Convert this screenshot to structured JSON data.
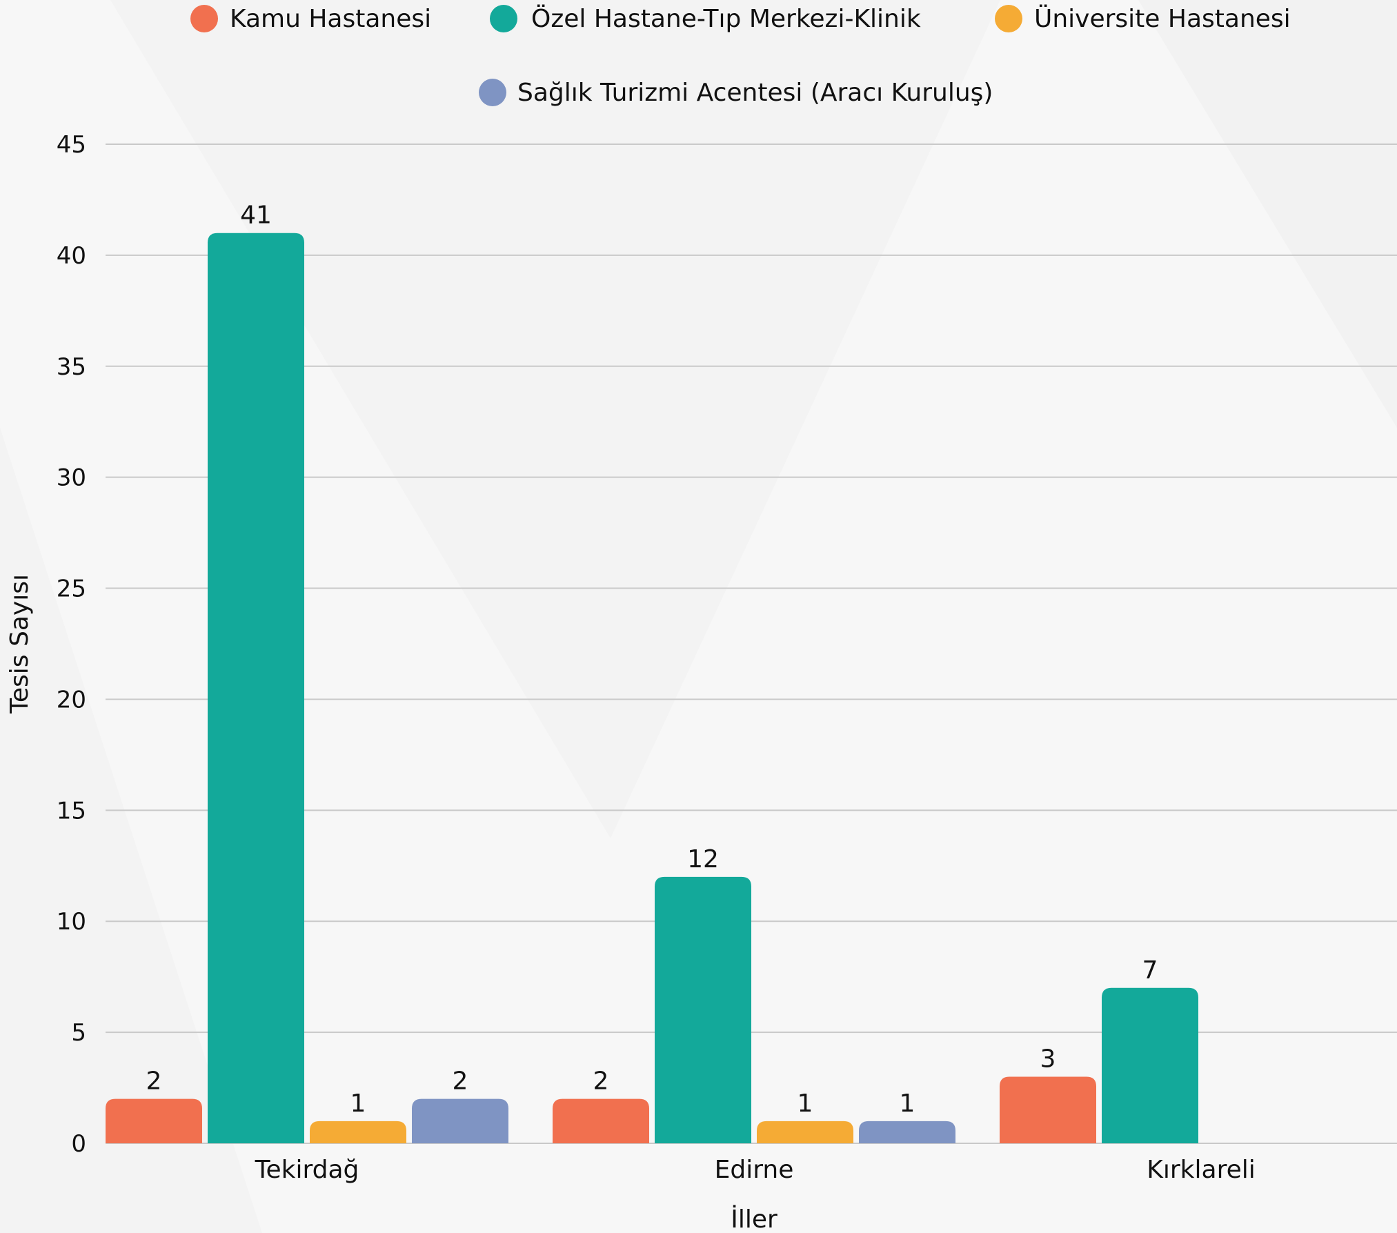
{
  "chart_data": {
    "type": "bar",
    "title": "",
    "xlabel": "İller",
    "ylabel": "Tesis Sayısı",
    "categories": [
      "Tekirdağ",
      "Edirne",
      "Kırklareli"
    ],
    "series": [
      {
        "name": "Kamu Hastanesi",
        "color": "#f1704f",
        "values": [
          2,
          2,
          3
        ]
      },
      {
        "name": "Özel Hastane-Tıp Merkezi-Klinik",
        "color": "#13a99a",
        "values": [
          41,
          12,
          7
        ]
      },
      {
        "name": "Üniversite Hastanesi",
        "color": "#f5ab35",
        "values": [
          1,
          1,
          null
        ]
      },
      {
        "name": "Sağlık Turizmi Acentesi (Aracı Kuruluş)",
        "color": "#7f94c3",
        "values": [
          2,
          1,
          null
        ]
      }
    ],
    "yticks": [
      0,
      5,
      10,
      15,
      20,
      25,
      30,
      35,
      40,
      45
    ],
    "ylim": [
      0,
      45
    ],
    "grid": true,
    "legend_position": "top",
    "data_labels": true
  }
}
